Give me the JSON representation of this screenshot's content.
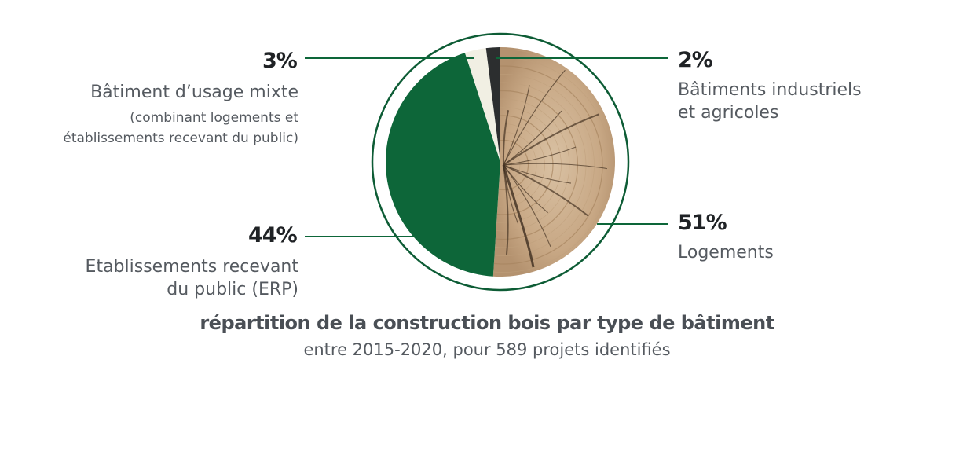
{
  "chart_data": {
    "type": "pie",
    "title": "répartition de la construction bois par type de bâtiment",
    "subtitle": "entre 2015-2020, pour 589 projets identifiés",
    "slices": [
      {
        "label": "Logements",
        "value": 51,
        "value_label": "51%",
        "color": "#c9ab8c"
      },
      {
        "label": "Etablissements recevant du public (ERP)",
        "value": 44,
        "value_label": "44%",
        "color": "#0d6639"
      },
      {
        "label": "Bâtiment d’usage mixte (combinant logements et établissements recevant du public)",
        "value": 3,
        "value_label": "3%",
        "color": "#f1efe3"
      },
      {
        "label": "Bâtiments industriels et agricoles",
        "value": 2,
        "value_label": "2%",
        "color": "#2c2e2f"
      }
    ]
  },
  "labels": {
    "mixte": {
      "pct": "3%",
      "line1": "Bâtiment d’usage mixte",
      "line2": "(combinant logements et",
      "line3": "établissements recevant du public)"
    },
    "industriels": {
      "pct": "2%",
      "line1": "Bâtiments industriels",
      "line2": "et agricoles"
    },
    "erp": {
      "pct": "44%",
      "line1": "Etablissements recevant",
      "line2": "du public (ERP)"
    },
    "logements": {
      "pct": "51%",
      "line1": "Logements"
    }
  },
  "colors": {
    "ring": "#0d5c35",
    "leader": "#0d6639",
    "wood_light": "#d9c1a3",
    "wood_dark": "#b4926f",
    "crack": "#4e3b29"
  }
}
